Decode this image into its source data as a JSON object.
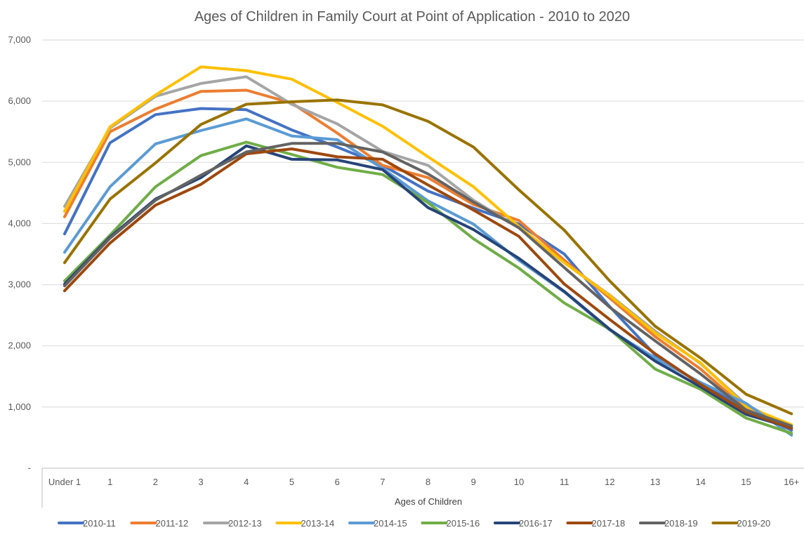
{
  "chart_data": {
    "type": "line",
    "title": "Ages of Children in Family Court at Point of Application - 2010 to 2020",
    "xlabel": "Ages of Children",
    "ylabel": "",
    "ylim": [
      0,
      7000
    ],
    "y_ticks": [
      0,
      1000,
      2000,
      3000,
      4000,
      5000,
      6000,
      7000
    ],
    "y_tick_labels": [
      "-",
      "1,000",
      "2,000",
      "3,000",
      "4,000",
      "5,000",
      "6,000",
      "7,000"
    ],
    "grid": true,
    "legend_position": "bottom",
    "categories": [
      "Under 1",
      "1",
      "2",
      "3",
      "4",
      "5",
      "6",
      "7",
      "8",
      "9",
      "10",
      "11",
      "12",
      "13",
      "14",
      "15",
      "16+"
    ],
    "series": [
      {
        "name": "2010-11",
        "color": "#4472C4",
        "values": [
          3830,
          5320,
          5780,
          5880,
          5860,
          5530,
          5250,
          4950,
          4530,
          4250,
          3990,
          3500,
          2640,
          1850,
          1380,
          980,
          620
        ]
      },
      {
        "name": "2011-12",
        "color": "#ED7D31",
        "values": [
          4110,
          5500,
          5870,
          6160,
          6180,
          5970,
          5480,
          4950,
          4750,
          4310,
          4050,
          3400,
          2780,
          2150,
          1620,
          970,
          700
        ]
      },
      {
        "name": "2012-13",
        "color": "#A5A5A5",
        "values": [
          4280,
          5560,
          6080,
          6290,
          6400,
          5950,
          5630,
          5180,
          4950,
          4380,
          3930,
          3360,
          2830,
          2240,
          1710,
          1040,
          650
        ]
      },
      {
        "name": "2013-14",
        "color": "#FFC000",
        "values": [
          4200,
          5580,
          6100,
          6560,
          6500,
          6360,
          5980,
          5590,
          5090,
          4600,
          3950,
          3360,
          2820,
          2210,
          1720,
          1010,
          710
        ]
      },
      {
        "name": "2014-15",
        "color": "#5B9BD5",
        "values": [
          3530,
          4600,
          5300,
          5520,
          5710,
          5430,
          5370,
          4900,
          4370,
          3990,
          3400,
          2880,
          2260,
          1800,
          1400,
          1060,
          540
        ]
      },
      {
        "name": "2015-16",
        "color": "#70AD47",
        "values": [
          3060,
          3810,
          4600,
          5110,
          5330,
          5130,
          4920,
          4800,
          4340,
          3750,
          3270,
          2700,
          2270,
          1620,
          1290,
          820,
          570
        ]
      },
      {
        "name": "2016-17",
        "color": "#264478",
        "values": [
          3010,
          3780,
          4400,
          4750,
          5270,
          5050,
          5040,
          4880,
          4260,
          3900,
          3430,
          2890,
          2270,
          1750,
          1330,
          880,
          660
        ]
      },
      {
        "name": "2017-18",
        "color": "#9E480E",
        "values": [
          2900,
          3680,
          4300,
          4640,
          5140,
          5220,
          5090,
          5050,
          4630,
          4220,
          3790,
          3010,
          2430,
          1870,
          1370,
          920,
          650
        ]
      },
      {
        "name": "2018-19",
        "color": "#636363",
        "values": [
          2980,
          3760,
          4380,
          4790,
          5170,
          5310,
          5310,
          5170,
          4810,
          4350,
          3930,
          3280,
          2630,
          2080,
          1540,
          950,
          690
        ]
      },
      {
        "name": "2019-20",
        "color": "#997300",
        "values": [
          3360,
          4400,
          4990,
          5620,
          5950,
          5990,
          6020,
          5940,
          5670,
          5250,
          4550,
          3890,
          3060,
          2320,
          1800,
          1210,
          890
        ]
      }
    ]
  }
}
